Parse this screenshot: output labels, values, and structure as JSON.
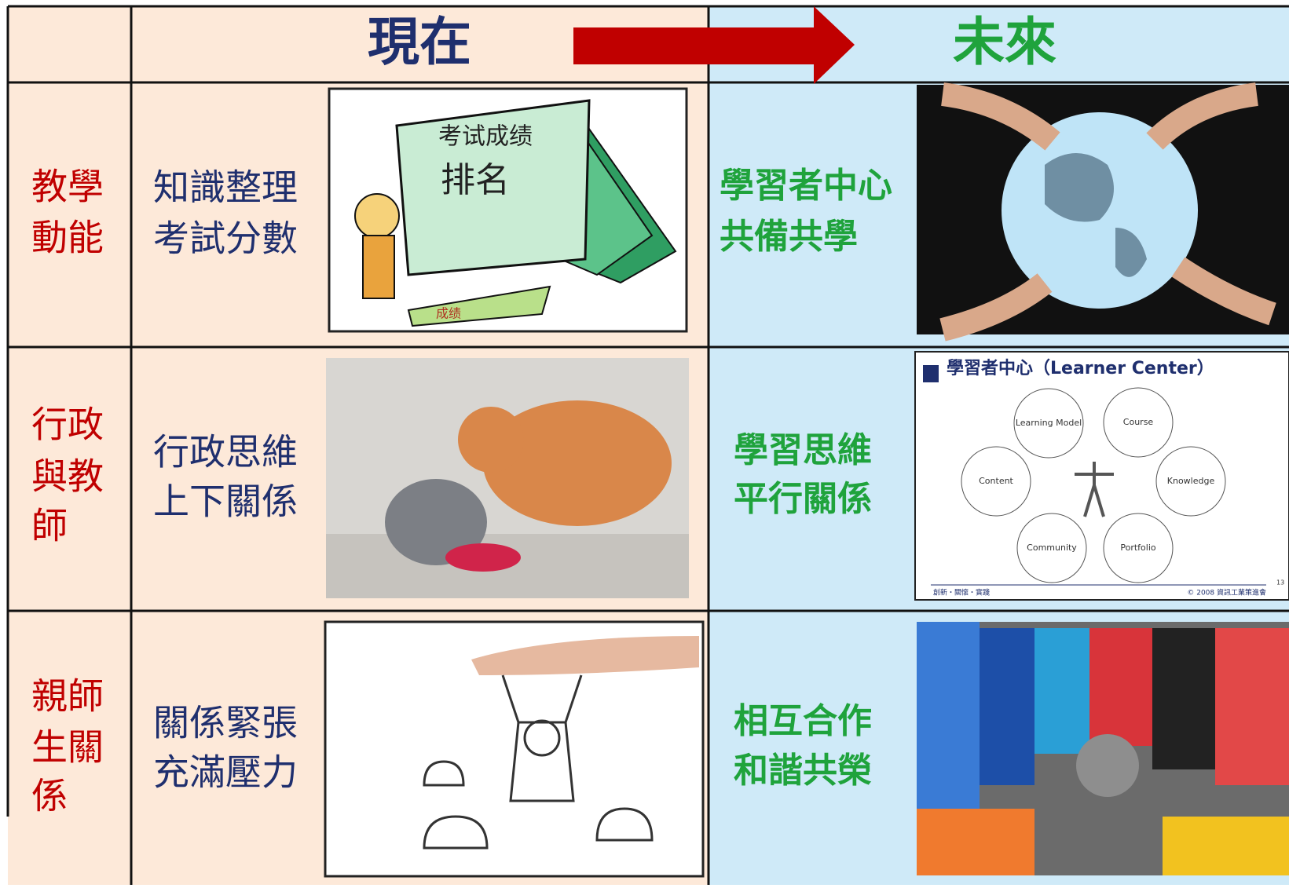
{
  "header": {
    "current": "現在",
    "future": "未來"
  },
  "rows": [
    {
      "label": [
        "教學",
        "動能"
      ],
      "current": [
        "知識整理",
        "考試分數"
      ],
      "future": [
        "學習者中心",
        "共備共學"
      ]
    },
    {
      "label": [
        "行政",
        "與教",
        "師"
      ],
      "current": [
        "行政思維",
        "上下關係"
      ],
      "future": [
        "學習思維",
        "平行關係"
      ]
    },
    {
      "label": [
        "親師",
        "生關",
        "係"
      ],
      "current": [
        "關係緊張",
        "充滿壓力"
      ],
      "future": [
        "相互合作",
        "和諧共榮"
      ]
    }
  ],
  "images": {
    "exam": {
      "title": "考试成绩",
      "rank": "排名",
      "ribbon": "成绩"
    },
    "learner_center": {
      "title": "學習者中心（Learner Center）",
      "nodes": [
        "Learning Model",
        "Course",
        "Content",
        "Knowledge",
        "Community",
        "Portfolio"
      ],
      "footer_left": "創新・關懷・實踐",
      "footer_right": "© 2008 資訊工業策進會",
      "page": "13"
    }
  }
}
